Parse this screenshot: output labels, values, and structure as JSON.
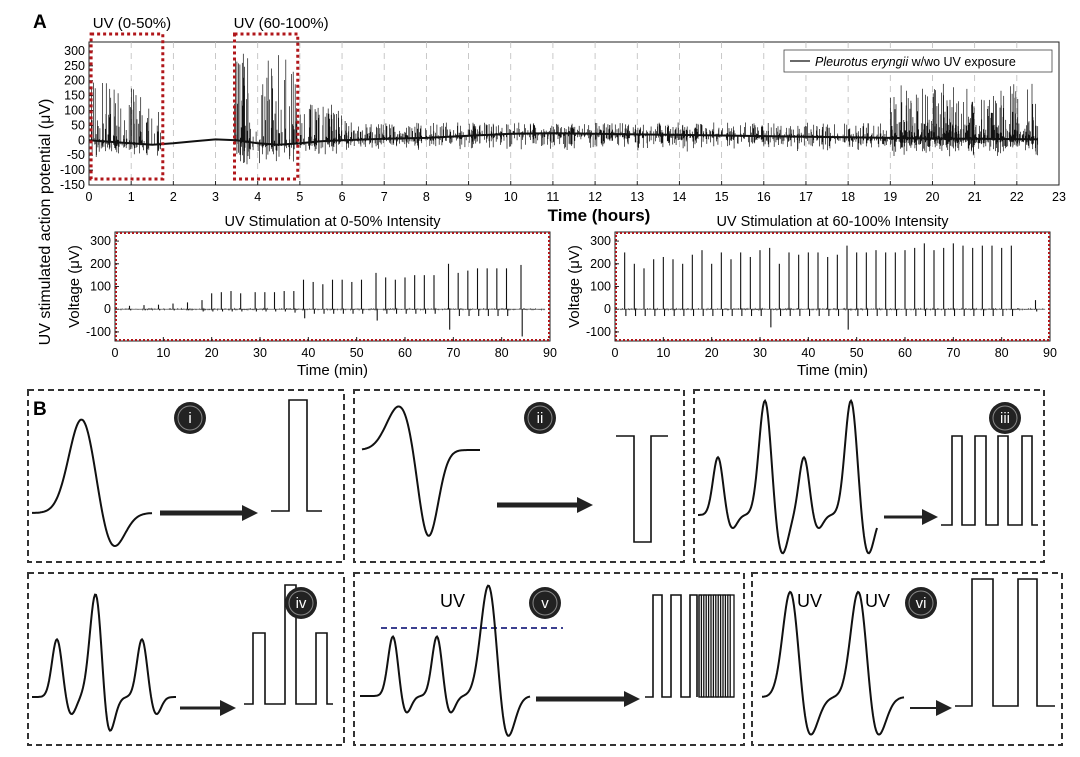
{
  "panel_a": {
    "letter": "A",
    "shared_ylabel": "UV stimulated action potential (μV)",
    "chart_data": [
      {
        "type": "line",
        "title": "",
        "xlabel": "Time (hours)",
        "ylabel": "",
        "xlim": [
          0,
          23
        ],
        "ylim": [
          -150,
          330
        ],
        "x_ticks": [
          "0",
          "1",
          "2",
          "3",
          "4",
          "5",
          "6",
          "7",
          "8",
          "9",
          "10",
          "11",
          "12",
          "13",
          "14",
          "15",
          "16",
          "17",
          "18",
          "19",
          "20",
          "21",
          "22",
          "23"
        ],
        "y_ticks": [
          "300",
          "250",
          "200",
          "150",
          "100",
          "50",
          "0",
          "-50",
          "-100",
          "-150"
        ],
        "grid": "vertical dashed",
        "legend": "top-right",
        "series": [
          {
            "name": "Pleurotus eryngii w/wo UV exposure",
            "color": "#111111",
            "baseline": {
              "x": [
                0,
                0.5,
                1,
                1.5,
                2,
                2.5,
                3,
                3.5,
                4,
                4.5,
                5,
                5.5,
                6,
                7,
                8,
                9,
                10,
                11,
                12,
                13,
                14,
                15,
                16,
                17,
                18,
                19,
                20,
                21,
                22,
                22.5
              ],
              "y": [
                0,
                -5,
                -10,
                -15,
                -10,
                -3,
                3,
                0,
                -10,
                -15,
                -10,
                -3,
                0,
                5,
                8,
                15,
                22,
                24,
                22,
                20,
                18,
                16,
                14,
                12,
                10,
                8,
                6,
                5,
                4,
                3
              ]
            },
            "spike_segments": [
              {
                "from": 0.05,
                "to": 1.75,
                "max": 200,
                "min": -60
              },
              {
                "from": 3.45,
                "to": 4.95,
                "max": 300,
                "min": -90
              },
              {
                "from": 5.0,
                "to": 6.2,
                "max": 120,
                "min": -50
              },
              {
                "from": 6.2,
                "to": 22.5,
                "max": 60,
                "min": -40
              },
              {
                "from": 19.0,
                "to": 22.5,
                "max": 190,
                "min": -60
              }
            ]
          }
        ],
        "annotations": [
          {
            "text": "UV (0-50%)",
            "x_from": 0.05,
            "x_to": 1.75,
            "y_from": -150,
            "y_to": 330
          },
          {
            "text": "UV (60-100%)",
            "x_from": 3.45,
            "x_to": 4.95,
            "y_from": -150,
            "y_to": 330
          }
        ]
      },
      {
        "type": "line",
        "title": "UV Stimulation at 0-50% Intensity",
        "xlabel": "Time (min)",
        "ylabel": "Voltage (μV)",
        "xlim": [
          0,
          90
        ],
        "ylim": [
          -140,
          340
        ],
        "x_ticks": [
          "0",
          "10",
          "20",
          "30",
          "40",
          "50",
          "60",
          "70",
          "80",
          "90"
        ],
        "y_ticks": [
          "300",
          "200",
          "100",
          "0",
          "-100"
        ],
        "spikes": {
          "times": [
            3,
            6,
            9,
            12,
            15,
            18,
            20,
            22,
            24,
            26,
            29,
            31,
            33,
            35,
            37,
            39,
            41,
            43,
            45,
            47,
            49,
            51,
            54,
            56,
            58,
            60,
            62,
            64,
            66,
            69,
            71,
            73,
            75,
            77,
            79,
            81,
            84
          ],
          "peaks": [
            15,
            18,
            20,
            25,
            30,
            40,
            70,
            75,
            80,
            70,
            75,
            75,
            75,
            80,
            80,
            130,
            120,
            110,
            130,
            130,
            120,
            130,
            160,
            140,
            130,
            140,
            150,
            150,
            150,
            200,
            160,
            170,
            180,
            180,
            180,
            180,
            195
          ],
          "troughs": [
            -5,
            -5,
            -5,
            -5,
            -5,
            -10,
            -10,
            -10,
            -10,
            -10,
            -10,
            -10,
            -10,
            -10,
            -15,
            -40,
            -20,
            -20,
            -20,
            -20,
            -20,
            -20,
            -50,
            -20,
            -20,
            -20,
            -20,
            -20,
            -20,
            -90,
            -30,
            -30,
            -30,
            -30,
            -30,
            -30,
            -120
          ]
        }
      },
      {
        "type": "line",
        "title": "UV Stimulation at 60-100% Intensity",
        "xlabel": "Time (min)",
        "ylabel": "Voltage (μV)",
        "xlim": [
          0,
          90
        ],
        "ylim": [
          -140,
          340
        ],
        "x_ticks": [
          "0",
          "10",
          "20",
          "30",
          "40",
          "50",
          "60",
          "70",
          "80",
          "90"
        ],
        "y_ticks": [
          "300",
          "200",
          "100",
          "0",
          "-100"
        ],
        "spikes": {
          "times": [
            2,
            4,
            6,
            8,
            10,
            12,
            14,
            16,
            18,
            20,
            22,
            24,
            26,
            28,
            30,
            32,
            34,
            36,
            38,
            40,
            42,
            44,
            46,
            48,
            50,
            52,
            54,
            56,
            58,
            60,
            62,
            64,
            66,
            68,
            70,
            72,
            74,
            76,
            78,
            80,
            82,
            87
          ],
          "peaks": [
            250,
            200,
            180,
            220,
            230,
            220,
            200,
            240,
            260,
            200,
            250,
            220,
            250,
            230,
            260,
            270,
            200,
            250,
            240,
            250,
            250,
            230,
            240,
            280,
            250,
            250,
            260,
            250,
            250,
            260,
            270,
            290,
            260,
            270,
            290,
            280,
            270,
            280,
            280,
            270,
            280,
            40
          ],
          "troughs": [
            -30,
            -30,
            -30,
            -30,
            -30,
            -30,
            -30,
            -30,
            -30,
            -30,
            -30,
            -30,
            -30,
            -30,
            -30,
            -80,
            -30,
            -30,
            -30,
            -30,
            -30,
            -30,
            -30,
            -90,
            -30,
            -30,
            -30,
            -30,
            -30,
            -30,
            -30,
            -30,
            -30,
            -30,
            -30,
            -30,
            -30,
            -30,
            -30,
            -30,
            -30,
            -10
          ]
        }
      }
    ]
  },
  "panel_b": {
    "letter": "B",
    "boxes": [
      {
        "badge": "i",
        "uv_labels": []
      },
      {
        "badge": "ii",
        "uv_labels": []
      },
      {
        "badge": "iii",
        "uv_labels": []
      },
      {
        "badge": "iv",
        "uv_labels": []
      },
      {
        "badge": "v",
        "uv_labels": [
          "UV"
        ]
      },
      {
        "badge": "vi",
        "uv_labels": [
          "UV",
          "UV"
        ]
      }
    ]
  }
}
